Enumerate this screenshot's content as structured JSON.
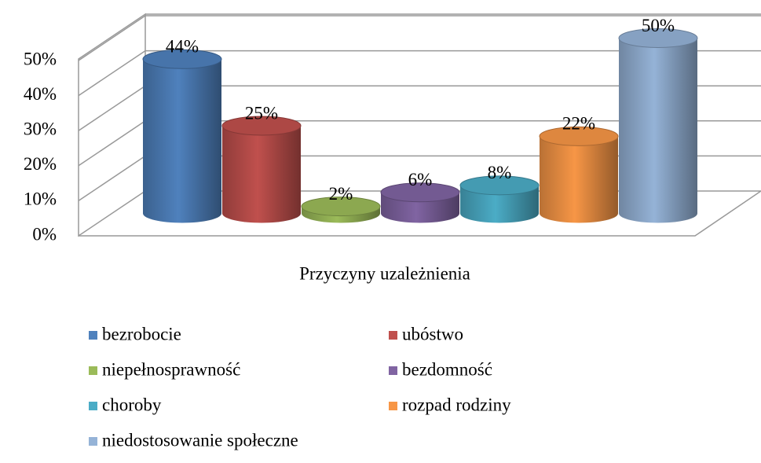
{
  "chart_data": {
    "type": "bar3d",
    "categories": [
      "Przyczyny uzależnienia"
    ],
    "ylim": [
      0,
      50
    ],
    "yticks": [
      {
        "value": 0,
        "label": "0%"
      },
      {
        "value": 10,
        "label": "10%"
      },
      {
        "value": 20,
        "label": "20%"
      },
      {
        "value": 30,
        "label": "30%"
      },
      {
        "value": 40,
        "label": "40%"
      },
      {
        "value": 50,
        "label": "50%"
      }
    ],
    "series": [
      {
        "name": "bezrobocie",
        "color": "#4f81bd",
        "values": [
          44
        ],
        "value_labels": [
          "44%"
        ]
      },
      {
        "name": "ubóstwo",
        "color": "#c0504d",
        "values": [
          25
        ],
        "value_labels": [
          "25%"
        ]
      },
      {
        "name": "niepełnosprawność",
        "color": "#9bbb59",
        "values": [
          2
        ],
        "value_labels": [
          "2%"
        ]
      },
      {
        "name": "bezdomność",
        "color": "#8064a2",
        "values": [
          6
        ],
        "value_labels": [
          "6%"
        ]
      },
      {
        "name": "choroby",
        "color": "#4bacc6",
        "values": [
          8
        ],
        "value_labels": [
          "8%"
        ]
      },
      {
        "name": "rozpad rodziny",
        "color": "#f79646",
        "values": [
          22
        ],
        "value_labels": [
          "22%"
        ]
      },
      {
        "name": "niedostosowanie społeczne",
        "color": "#95b3d7",
        "values": [
          50
        ],
        "value_labels": [
          "50%"
        ]
      }
    ],
    "legend": "bottom"
  }
}
